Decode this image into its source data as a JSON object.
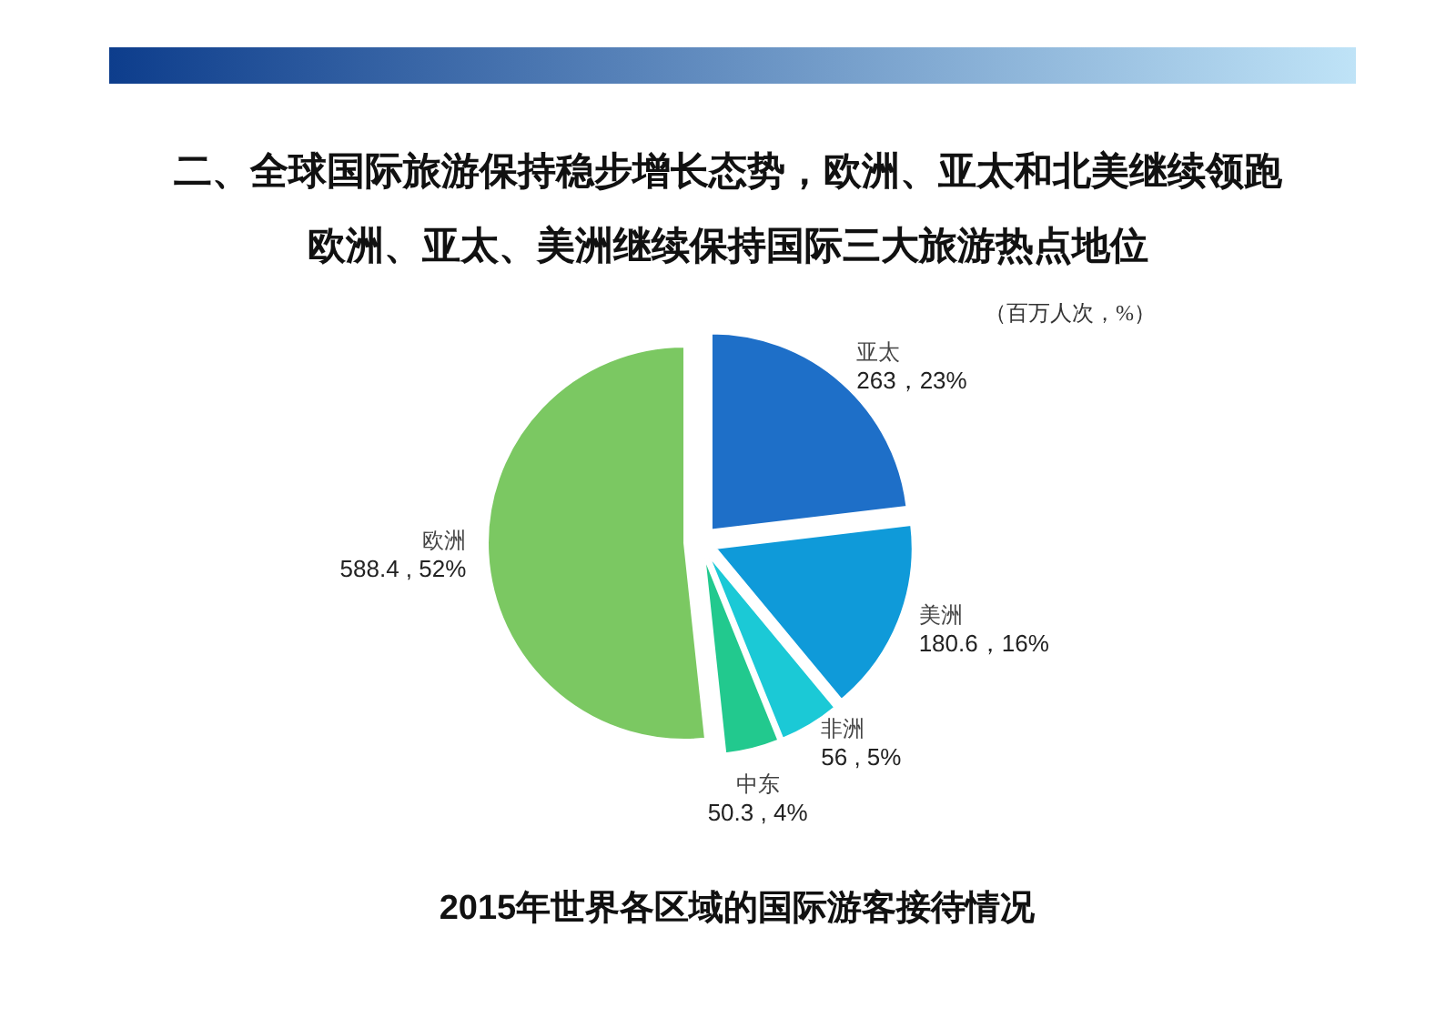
{
  "chart_data": {
    "type": "pie",
    "title": "二、全球国际旅游保持稳步增长态势，欧洲、亚太和北美继续领跑",
    "subtitle": "欧洲、亚太、美洲继续保持国际三大旅游热点地位",
    "categories": [
      "亚太",
      "美洲",
      "非洲",
      "中东",
      "欧洲"
    ],
    "values": [
      263,
      180.6,
      56,
      50.3,
      588.4
    ],
    "value_labels": [
      "263，23%",
      "180.6，16%",
      "56 , 5%",
      "50.3 , 4%",
      "588.4 , 52%"
    ],
    "colors": [
      "#1e6fc8",
      "#0f9ad9",
      "#1bc9d6",
      "#22c98e",
      "#7bc862"
    ],
    "annotations": [
      "（百万人次，%）",
      "2015年世界各区域的国际游客接待情况"
    ]
  }
}
